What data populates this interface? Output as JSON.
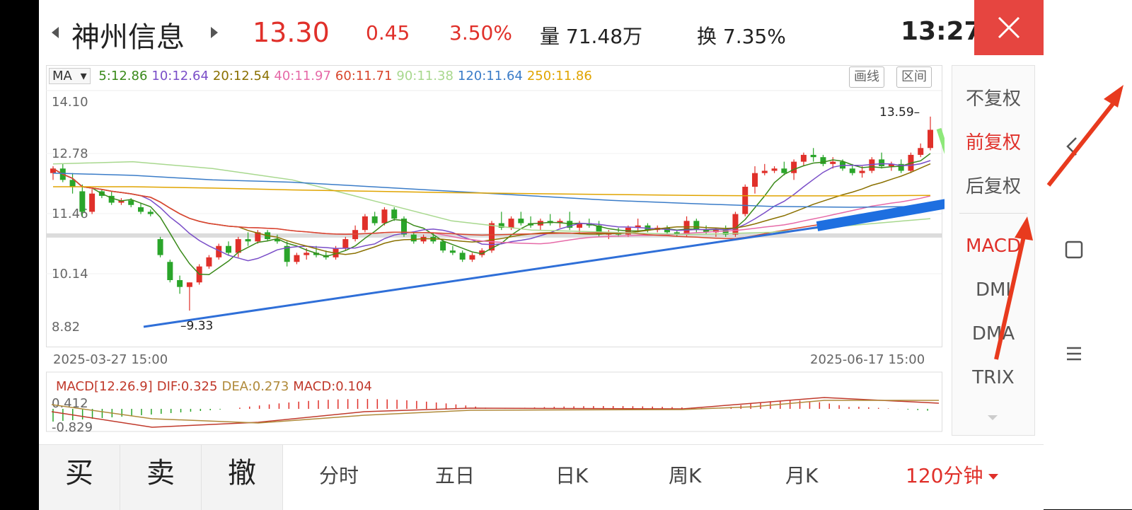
{
  "header": {
    "stock_name": "神州信息",
    "price": "13.30",
    "change": "0.45",
    "change_pct": "3.50%",
    "volume": "量 71.48万",
    "turnover": "换 7.35%",
    "time": "13:27"
  },
  "ma_bar": {
    "selector": "MA",
    "items": [
      {
        "label": "5:12.86",
        "color": "#3a8a1a"
      },
      {
        "label": "10:12.64",
        "color": "#7a4ec8"
      },
      {
        "label": "20:12.54",
        "color": "#8a7000"
      },
      {
        "label": "40:11.97",
        "color": "#e66aa8"
      },
      {
        "label": "60:11.71",
        "color": "#d8462c"
      },
      {
        "label": "90:11.38",
        "color": "#a8d88e"
      },
      {
        "label": "120:11.64",
        "color": "#3a7cc8"
      },
      {
        "label": "250:11.86",
        "color": "#e0a400"
      }
    ],
    "draw_btn": "画线",
    "range_btn": "区间"
  },
  "chart_data": {
    "type": "candlestick",
    "y_ticks": [
      "14.10",
      "12.78",
      "11.46",
      "10.14",
      "8.82"
    ],
    "ylim": [
      8.82,
      14.1
    ],
    "start_date": "2025-03-27  15:00",
    "end_date": "2025-06-17  15:00",
    "high_label": "13.59",
    "low_label": "9.33",
    "candles": [
      [
        12.35,
        12.5,
        12.2,
        12.45
      ],
      [
        12.45,
        12.55,
        12.15,
        12.2
      ],
      [
        12.2,
        12.35,
        11.9,
        12.05
      ],
      [
        11.95,
        12.1,
        11.4,
        11.5
      ],
      [
        11.5,
        12.0,
        11.45,
        11.9
      ],
      [
        11.95,
        12.0,
        11.8,
        11.85
      ],
      [
        11.85,
        11.95,
        11.65,
        11.7
      ],
      [
        11.7,
        11.8,
        11.65,
        11.75
      ],
      [
        11.75,
        11.8,
        11.6,
        11.65
      ],
      [
        11.6,
        11.7,
        11.45,
        11.5
      ],
      [
        11.5,
        11.55,
        11.4,
        11.45
      ],
      [
        10.9,
        10.95,
        10.5,
        10.55
      ],
      [
        10.4,
        10.45,
        9.95,
        10.0
      ],
      [
        10.0,
        10.1,
        9.7,
        9.85
      ],
      [
        9.85,
        9.95,
        9.33,
        9.95
      ],
      [
        9.95,
        10.35,
        9.9,
        10.3
      ],
      [
        10.3,
        10.55,
        10.25,
        10.5
      ],
      [
        10.5,
        10.8,
        10.45,
        10.75
      ],
      [
        10.75,
        10.85,
        10.55,
        10.6
      ],
      [
        10.6,
        10.95,
        10.5,
        10.9
      ],
      [
        10.9,
        11.05,
        10.75,
        10.85
      ],
      [
        10.85,
        11.1,
        10.8,
        11.05
      ],
      [
        11.05,
        11.1,
        10.85,
        10.9
      ],
      [
        10.9,
        11.0,
        10.8,
        10.85
      ],
      [
        10.75,
        10.85,
        10.3,
        10.4
      ],
      [
        10.4,
        10.6,
        10.35,
        10.55
      ],
      [
        10.55,
        10.7,
        10.45,
        10.6
      ],
      [
        10.6,
        10.75,
        10.5,
        10.55
      ],
      [
        10.55,
        10.65,
        10.45,
        10.5
      ],
      [
        10.5,
        10.75,
        10.45,
        10.7
      ],
      [
        10.7,
        10.95,
        10.65,
        10.9
      ],
      [
        10.9,
        11.2,
        10.85,
        11.1
      ],
      [
        11.1,
        11.45,
        11.05,
        11.4
      ],
      [
        11.4,
        11.5,
        11.2,
        11.25
      ],
      [
        11.25,
        11.6,
        11.2,
        11.55
      ],
      [
        11.55,
        11.6,
        11.3,
        11.35
      ],
      [
        11.35,
        11.4,
        10.95,
        11.0
      ],
      [
        11.0,
        11.05,
        10.8,
        10.85
      ],
      [
        10.85,
        11.0,
        10.8,
        10.95
      ],
      [
        10.95,
        11.05,
        10.8,
        10.85
      ],
      [
        10.85,
        10.9,
        10.6,
        10.65
      ],
      [
        10.65,
        10.75,
        10.55,
        10.6
      ],
      [
        10.6,
        10.65,
        10.4,
        10.45
      ],
      [
        10.45,
        10.6,
        10.4,
        10.55
      ],
      [
        10.55,
        10.7,
        10.5,
        10.65
      ],
      [
        10.65,
        11.3,
        10.6,
        11.25
      ],
      [
        11.25,
        11.5,
        11.1,
        11.15
      ],
      [
        11.15,
        11.4,
        11.1,
        11.35
      ],
      [
        11.35,
        11.5,
        11.2,
        11.25
      ],
      [
        11.25,
        11.4,
        11.15,
        11.2
      ],
      [
        11.2,
        11.35,
        11.1,
        11.3
      ],
      [
        11.3,
        11.45,
        11.2,
        11.25
      ],
      [
        11.25,
        11.35,
        11.15,
        11.3
      ],
      [
        11.3,
        11.5,
        11.1,
        11.15
      ],
      [
        11.15,
        11.3,
        11.05,
        11.25
      ],
      [
        11.25,
        11.35,
        11.15,
        11.2
      ],
      [
        11.2,
        11.3,
        10.95,
        11.0
      ],
      [
        11.0,
        11.1,
        10.9,
        11.05
      ],
      [
        11.05,
        11.15,
        10.95,
        11.0
      ],
      [
        11.0,
        11.2,
        10.95,
        11.15
      ],
      [
        11.15,
        11.35,
        11.05,
        11.2
      ],
      [
        11.2,
        11.25,
        11.05,
        11.1
      ],
      [
        11.1,
        11.2,
        11.05,
        11.15
      ],
      [
        11.15,
        11.2,
        11.0,
        11.05
      ],
      [
        11.05,
        11.1,
        10.95,
        11.0
      ],
      [
        11.0,
        11.4,
        10.95,
        11.3
      ],
      [
        11.3,
        11.35,
        11.05,
        11.1
      ],
      [
        11.1,
        11.2,
        11.0,
        11.05
      ],
      [
        11.05,
        11.15,
        10.95,
        11.1
      ],
      [
        11.1,
        11.2,
        10.95,
        11.0
      ],
      [
        11.0,
        11.5,
        10.95,
        11.45
      ],
      [
        11.45,
        12.1,
        11.4,
        12.05
      ],
      [
        12.05,
        12.5,
        11.9,
        12.35
      ],
      [
        12.35,
        12.55,
        12.3,
        12.4
      ],
      [
        12.4,
        12.5,
        12.35,
        12.45
      ],
      [
        12.45,
        12.6,
        12.3,
        12.35
      ],
      [
        12.35,
        12.65,
        12.2,
        12.6
      ],
      [
        12.6,
        12.8,
        12.5,
        12.75
      ],
      [
        12.75,
        12.9,
        12.6,
        12.7
      ],
      [
        12.7,
        12.75,
        12.5,
        12.55
      ],
      [
        12.55,
        12.7,
        12.45,
        12.6
      ],
      [
        12.6,
        12.65,
        12.4,
        12.45
      ],
      [
        12.45,
        12.55,
        12.3,
        12.35
      ],
      [
        12.35,
        12.5,
        12.25,
        12.4
      ],
      [
        12.4,
        12.7,
        12.35,
        12.65
      ],
      [
        12.65,
        12.8,
        12.45,
        12.5
      ],
      [
        12.5,
        12.6,
        12.4,
        12.55
      ],
      [
        12.55,
        12.65,
        12.35,
        12.4
      ],
      [
        12.4,
        12.8,
        12.35,
        12.75
      ],
      [
        12.75,
        13.0,
        12.7,
        12.9
      ],
      [
        12.9,
        13.59,
        12.85,
        13.3
      ]
    ]
  },
  "macd": {
    "title": "MACD[12.26.9]",
    "dif": "DIF:0.325",
    "dea": "DEA:0.273",
    "macd": "MACD:0.104",
    "top_tick": "0.412",
    "bottom_tick": "-0.829"
  },
  "side_panel": {
    "items": [
      "不复权",
      "前复权",
      "后复权",
      "MACD",
      "DMI",
      "DMA",
      "TRIX"
    ],
    "active_adjust": "前复权",
    "active_indicator": "MACD"
  },
  "bottom_bar": {
    "trade": [
      "买",
      "卖",
      "撤"
    ],
    "periods": [
      "分时",
      "五日",
      "日K",
      "周K",
      "月K"
    ],
    "active_period": "120分钟"
  },
  "colors": {
    "up": "#e0302a",
    "down": "#2aa52a",
    "accent": "#e64540"
  }
}
